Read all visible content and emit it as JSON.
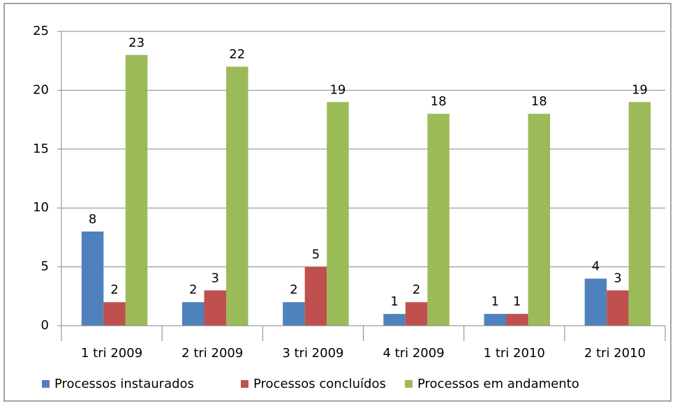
{
  "chart_data": {
    "type": "bar",
    "categories": [
      "1 tri 2009",
      "2 tri 2009",
      "3 tri 2009",
      "4 tri 2009",
      "1 tri 2010",
      "2 tri 2010"
    ],
    "series": [
      {
        "name": "Processos instaurados",
        "color": "#4f81bd",
        "values": [
          8,
          2,
          2,
          1,
          1,
          4
        ]
      },
      {
        "name": "Processos concluídos",
        "color": "#c0504d",
        "values": [
          2,
          3,
          5,
          2,
          1,
          3
        ]
      },
      {
        "name": "Processos em andamento",
        "color": "#9bbb59",
        "values": [
          23,
          22,
          19,
          18,
          18,
          19
        ]
      }
    ],
    "ylim": [
      0,
      25
    ],
    "yticks": [
      0,
      5,
      10,
      15,
      20,
      25
    ],
    "grid": true,
    "legend": "bottom"
  }
}
